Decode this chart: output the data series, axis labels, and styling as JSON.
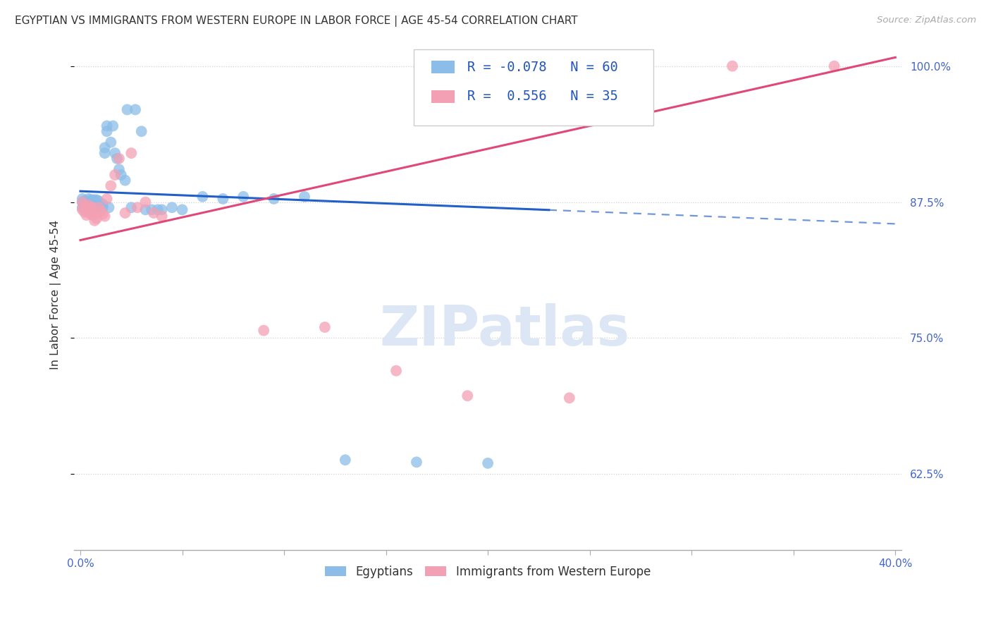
{
  "title": "EGYPTIAN VS IMMIGRANTS FROM WESTERN EUROPE IN LABOR FORCE | AGE 45-54 CORRELATION CHART",
  "source": "Source: ZipAtlas.com",
  "ylabel": "In Labor Force | Age 45-54",
  "xlim": [
    -0.003,
    0.403
  ],
  "ylim": [
    0.555,
    1.025
  ],
  "xtick_positions": [
    0.0,
    0.05,
    0.1,
    0.15,
    0.2,
    0.25,
    0.3,
    0.35,
    0.4
  ],
  "ytick_positions": [
    0.625,
    0.75,
    0.875,
    1.0
  ],
  "ytick_labels": [
    "62.5%",
    "75.0%",
    "87.5%",
    "100.0%"
  ],
  "background_color": "#ffffff",
  "grid_color": "#d0d0d0",
  "watermark": "ZIPatlas",
  "legend_r_blue": "-0.078",
  "legend_n_blue": "60",
  "legend_r_pink": "0.556",
  "legend_n_pink": "35",
  "legend_label_blue": "Egyptians",
  "legend_label_pink": "Immigrants from Western Europe",
  "blue_color": "#8BBDE8",
  "pink_color": "#F4A0B4",
  "line_blue": "#2060C8",
  "line_pink": "#E04878",
  "blue_scatter_x": [
    0.001,
    0.001,
    0.001,
    0.002,
    0.002,
    0.002,
    0.003,
    0.003,
    0.003,
    0.004,
    0.004,
    0.004,
    0.005,
    0.005,
    0.005,
    0.006,
    0.006,
    0.006,
    0.007,
    0.007,
    0.007,
    0.008,
    0.008,
    0.008,
    0.009,
    0.009,
    0.01,
    0.01,
    0.011,
    0.011,
    0.012,
    0.012,
    0.013,
    0.013,
    0.014,
    0.015,
    0.016,
    0.017,
    0.018,
    0.019,
    0.02,
    0.022,
    0.023,
    0.025,
    0.027,
    0.03,
    0.032,
    0.035,
    0.038,
    0.04,
    0.045,
    0.05,
    0.06,
    0.07,
    0.08,
    0.095,
    0.11,
    0.13,
    0.165,
    0.2
  ],
  "blue_scatter_y": [
    0.87,
    0.875,
    0.878,
    0.87,
    0.873,
    0.876,
    0.869,
    0.872,
    0.875,
    0.87,
    0.874,
    0.878,
    0.87,
    0.873,
    0.877,
    0.87,
    0.873,
    0.877,
    0.87,
    0.873,
    0.877,
    0.87,
    0.873,
    0.877,
    0.87,
    0.876,
    0.87,
    0.873,
    0.87,
    0.873,
    0.92,
    0.925,
    0.94,
    0.945,
    0.87,
    0.93,
    0.945,
    0.92,
    0.915,
    0.905,
    0.9,
    0.895,
    0.96,
    0.87,
    0.96,
    0.94,
    0.868,
    0.868,
    0.868,
    0.868,
    0.87,
    0.868,
    0.88,
    0.878,
    0.88,
    0.878,
    0.88,
    0.638,
    0.636,
    0.635
  ],
  "pink_scatter_x": [
    0.001,
    0.001,
    0.002,
    0.002,
    0.003,
    0.003,
    0.004,
    0.004,
    0.005,
    0.005,
    0.006,
    0.006,
    0.007,
    0.008,
    0.009,
    0.01,
    0.011,
    0.012,
    0.013,
    0.015,
    0.017,
    0.019,
    0.022,
    0.025,
    0.028,
    0.032,
    0.036,
    0.04,
    0.09,
    0.12,
    0.155,
    0.19,
    0.24,
    0.32,
    0.37
  ],
  "pink_scatter_y": [
    0.875,
    0.868,
    0.872,
    0.866,
    0.87,
    0.863,
    0.872,
    0.866,
    0.87,
    0.864,
    0.87,
    0.863,
    0.858,
    0.86,
    0.87,
    0.867,
    0.864,
    0.862,
    0.878,
    0.89,
    0.9,
    0.915,
    0.865,
    0.92,
    0.87,
    0.875,
    0.865,
    0.862,
    0.757,
    0.76,
    0.72,
    0.697,
    0.695,
    1.0,
    1.0
  ],
  "blue_line_x0": 0.0,
  "blue_line_x1": 0.25,
  "blue_line_x2": 0.4,
  "blue_line_y_at_0": 0.885,
  "blue_line_slope": -0.075,
  "pink_line_x0": 0.0,
  "pink_line_x1": 0.4,
  "pink_line_y_at_0": 0.84,
  "pink_line_slope": 0.42
}
